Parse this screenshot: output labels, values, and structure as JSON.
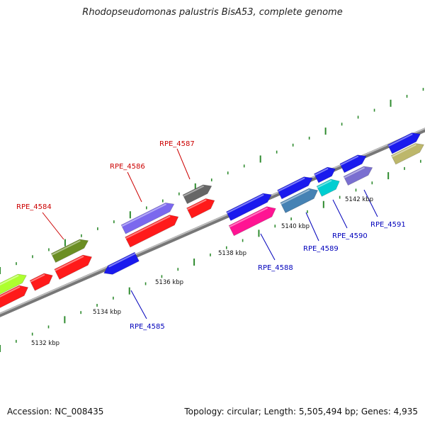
{
  "title": "Rhodopseudomonas palustris BisA53, complete genome",
  "footer": {
    "accession": "Accession: NC_008435",
    "summary": "Topology: circular; Length: 5,505,494 bp; Genes: 4,935"
  },
  "colors": {
    "backbone": "#9a9a9a",
    "tick": "#2e8b2e",
    "label_red": "#cc0000",
    "label_blue": "#0000bb"
  },
  "kbp_labels": [
    "5132 kbp",
    "5134 kbp",
    "5136 kbp",
    "5138 kbp",
    "5140 kbp",
    "5142 kbp"
  ],
  "gene_labels": [
    {
      "id": "RPE_4584",
      "color": "red"
    },
    {
      "id": "RPE_4586",
      "color": "red"
    },
    {
      "id": "RPE_4587",
      "color": "red"
    },
    {
      "id": "RPE_4585",
      "color": "blue"
    },
    {
      "id": "RPE_4588",
      "color": "blue"
    },
    {
      "id": "RPE_4589",
      "color": "blue"
    },
    {
      "id": "RPE_4590",
      "color": "blue"
    },
    {
      "id": "RPE_4591",
      "color": "blue"
    }
  ],
  "gene_colors": {
    "red": "#ff1a1a",
    "blue": "#1a1aee",
    "olive": "#6b8e23",
    "lime": "#adff2f",
    "purple": "#7b68ee",
    "gray": "#666666",
    "magenta": "#ff1493",
    "steel": "#4682b4",
    "cyan": "#00ced1",
    "slate": "#7a6fd0",
    "khaki": "#bdb76b"
  }
}
